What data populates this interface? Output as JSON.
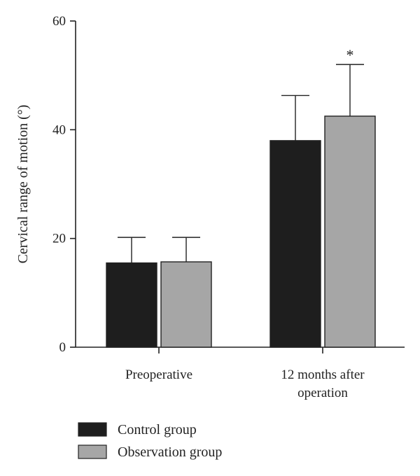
{
  "chart_data": {
    "type": "bar",
    "title": "",
    "xlabel": "",
    "ylabel": "Cervical range of motion (°)",
    "ylim": [
      0,
      60
    ],
    "yticks": [
      0,
      20,
      40,
      60
    ],
    "grid": false,
    "legend_position": "bottom-left",
    "categories": [
      [
        "Preoperative"
      ],
      [
        "12 months after",
        "operation"
      ]
    ],
    "series": [
      {
        "name": "Control group",
        "color": "#1e1e1e",
        "values": [
          15.5,
          38.0
        ],
        "error": [
          4.7,
          8.3
        ]
      },
      {
        "name": "Observation group",
        "color": "#a6a6a6",
        "values": [
          15.7,
          42.5
        ],
        "error": [
          4.5,
          9.5
        ]
      }
    ],
    "annotations": [
      {
        "series": 1,
        "category": 1,
        "text": "*"
      }
    ]
  }
}
